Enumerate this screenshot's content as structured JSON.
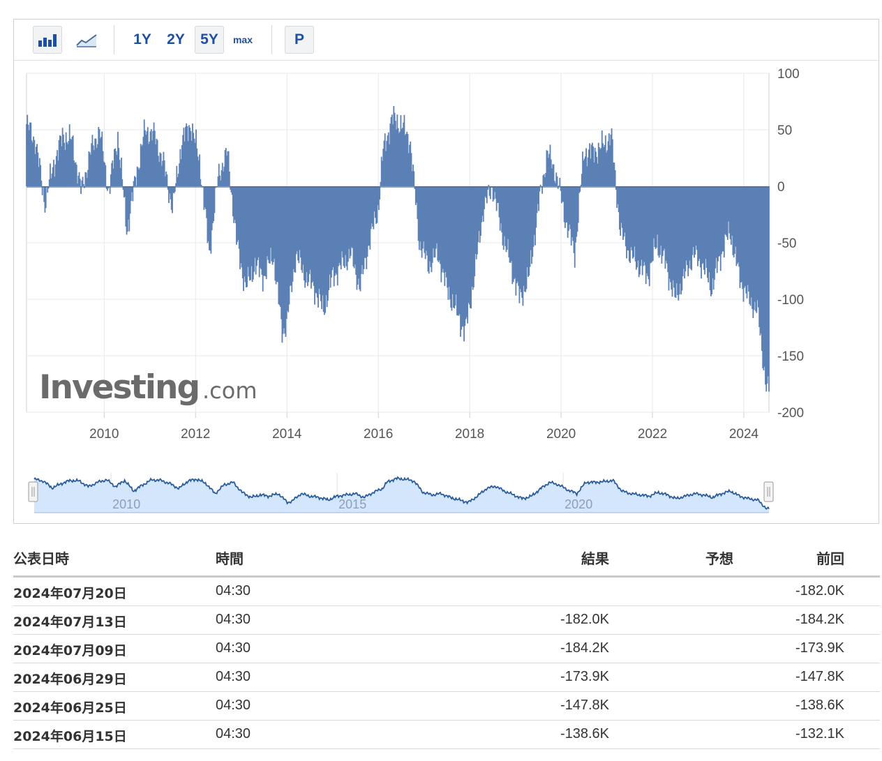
{
  "toolbar": {
    "bar_chart_icon": "bar-chart-icon",
    "line_chart_icon": "line-chart-icon",
    "periods": [
      "1Y",
      "2Y",
      "5Y",
      "max"
    ],
    "active_period": "5Y",
    "p_label": "P"
  },
  "watermark": {
    "brand": "Investing",
    "suffix": ".com"
  },
  "chart_data": {
    "type": "bar",
    "title": "",
    "xlabel": "",
    "ylabel": "",
    "x_range": [
      2008.3,
      2024.55
    ],
    "ylim": [
      -200,
      100
    ],
    "y_ticks": [
      "100",
      "50",
      "0",
      "-50",
      "-100",
      "-150",
      "-200"
    ],
    "x_ticks": [
      "2010",
      "2012",
      "2014",
      "2016",
      "2018",
      "2020",
      "2022",
      "2024"
    ],
    "navigator_ticks": [
      "2010",
      "2015",
      "2020"
    ],
    "bar_color": "#5b80b5",
    "grid": true,
    "series": [
      {
        "x": [
          2008.3,
          2008.5,
          2008.7,
          2008.9,
          2009.1,
          2009.3,
          2009.5,
          2009.7,
          2009.9,
          2010.1,
          2010.3,
          2010.5,
          2010.7,
          2010.9,
          2011.1,
          2011.3,
          2011.5,
          2011.7,
          2011.9,
          2012.1,
          2012.3,
          2012.5,
          2012.7,
          2012.9,
          2013.1,
          2013.3,
          2013.5,
          2013.7,
          2013.9,
          2014.0,
          2014.2,
          2014.4,
          2014.6,
          2014.8,
          2015.0,
          2015.2,
          2015.4,
          2015.6,
          2015.8,
          2016.0,
          2016.1,
          2016.3,
          2016.5,
          2016.7,
          2016.9,
          2017.1,
          2017.3,
          2017.5,
          2017.7,
          2017.9,
          2018.1,
          2018.3,
          2018.5,
          2018.7,
          2018.9,
          2019.1,
          2019.3,
          2019.5,
          2019.7,
          2019.9,
          2020.1,
          2020.3,
          2020.5,
          2020.7,
          2020.9,
          2021.1,
          2021.3,
          2021.5,
          2021.7,
          2021.9,
          2022.1,
          2022.3,
          2022.5,
          2022.7,
          2022.9,
          2023.1,
          2023.3,
          2023.5,
          2023.7,
          2023.9,
          2024.1,
          2024.3,
          2024.5
        ],
        "values": [
          55,
          40,
          -15,
          20,
          45,
          40,
          -5,
          30,
          50,
          -5,
          45,
          -40,
          10,
          50,
          45,
          20,
          -20,
          40,
          55,
          20,
          -60,
          10,
          30,
          -50,
          -90,
          -70,
          -80,
          -60,
          -130,
          -120,
          -60,
          -80,
          -90,
          -110,
          -80,
          -70,
          -60,
          -90,
          -50,
          -20,
          30,
          60,
          55,
          40,
          -50,
          -70,
          -60,
          -90,
          -110,
          -130,
          -80,
          -20,
          0,
          -40,
          -70,
          -100,
          -80,
          -20,
          30,
          10,
          -30,
          -60,
          30,
          30,
          35,
          45,
          -40,
          -60,
          -70,
          -80,
          -50,
          -70,
          -100,
          -80,
          -60,
          -70,
          -90,
          -60,
          -40,
          -80,
          -100,
          -110,
          -180
        ]
      }
    ]
  },
  "table": {
    "headers": {
      "date": "公表日時",
      "time": "時間",
      "result": "結果",
      "forecast": "予想",
      "previous": "前回"
    },
    "rows": [
      {
        "date": "2024年07月20日",
        "time": "04:30",
        "result": "",
        "forecast": "",
        "previous": "-182.0K"
      },
      {
        "date": "2024年07月13日",
        "time": "04:30",
        "result": "-182.0K",
        "forecast": "",
        "previous": "-184.2K"
      },
      {
        "date": "2024年07月09日",
        "time": "04:30",
        "result": "-184.2K",
        "forecast": "",
        "previous": "-173.9K"
      },
      {
        "date": "2024年06月29日",
        "time": "04:30",
        "result": "-173.9K",
        "forecast": "",
        "previous": "-147.8K"
      },
      {
        "date": "2024年06月25日",
        "time": "04:30",
        "result": "-147.8K",
        "forecast": "",
        "previous": "-138.6K"
      },
      {
        "date": "2024年06月15日",
        "time": "04:30",
        "result": "-138.6K",
        "forecast": "",
        "previous": "-132.1K"
      }
    ]
  }
}
